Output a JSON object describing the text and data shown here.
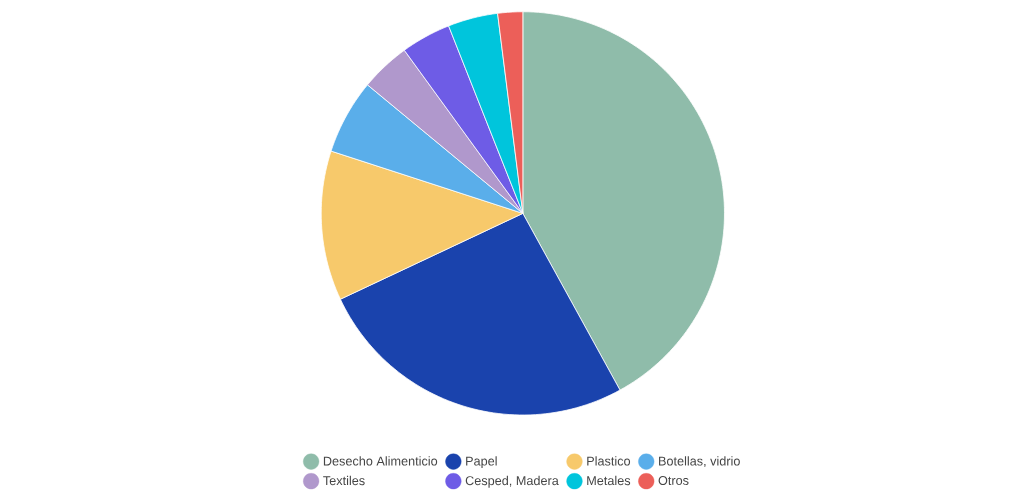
{
  "chart_data": {
    "type": "pie",
    "categories": [
      "Desecho Alimenticio",
      "Papel",
      "Plastico",
      "Botellas, vidrio",
      "Textiles",
      "Cesped, Madera",
      "Metales",
      "Otros"
    ],
    "values": [
      42,
      26,
      12,
      6,
      4,
      4,
      4,
      2
    ],
    "colors": [
      "#8fbcaa",
      "#1a43ad",
      "#f7c96b",
      "#5aaeea",
      "#b098cc",
      "#6e5ce6",
      "#00c5dc",
      "#ec5f59"
    ],
    "legend": "bottom"
  }
}
